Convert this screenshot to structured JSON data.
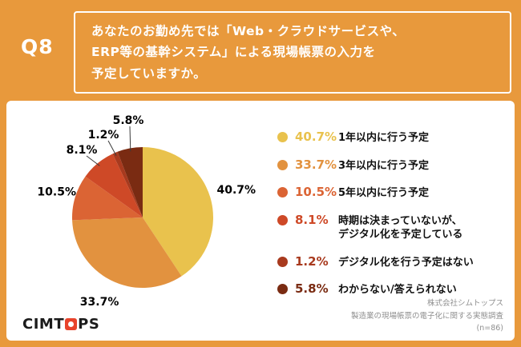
{
  "header": {
    "q_label": "Q8",
    "question": "あなたのお勤め先では「Web・クラウドサービスや、\nERP等の基幹システム」による現場帳票の入力を\n予定していますか。"
  },
  "chart_data": {
    "type": "pie",
    "direction": "clockwise",
    "start_angle_deg": 0,
    "unit": "%",
    "legend_position": "right",
    "slices": [
      {
        "label": "1年以内に行う予定",
        "value": 40.7,
        "display": "40.7%",
        "color": "#E9C24D"
      },
      {
        "label": "3年以内に行う予定",
        "value": 33.7,
        "display": "33.7%",
        "color": "#E2923F"
      },
      {
        "label": "5年以内に行う予定",
        "value": 10.5,
        "display": "10.5%",
        "color": "#DB6434"
      },
      {
        "label": "時期は決まっていないが、\nデジタル化を予定している",
        "value": 8.1,
        "display": "8.1%",
        "color": "#CE4927"
      },
      {
        "label": "デジタル化を行う予定はない",
        "value": 1.2,
        "display": "1.2%",
        "color": "#A83A1E"
      },
      {
        "label": "わからない/答えられない",
        "value": 5.8,
        "display": "5.8%",
        "color": "#7A2B12"
      }
    ]
  },
  "footer": {
    "logo_text": "CIMTOPS",
    "credit_line1": "株式会社シムトップス",
    "credit_line2": "製造業の現場帳票の電子化に関する実態調査",
    "credit_line3": "(n=86)"
  }
}
